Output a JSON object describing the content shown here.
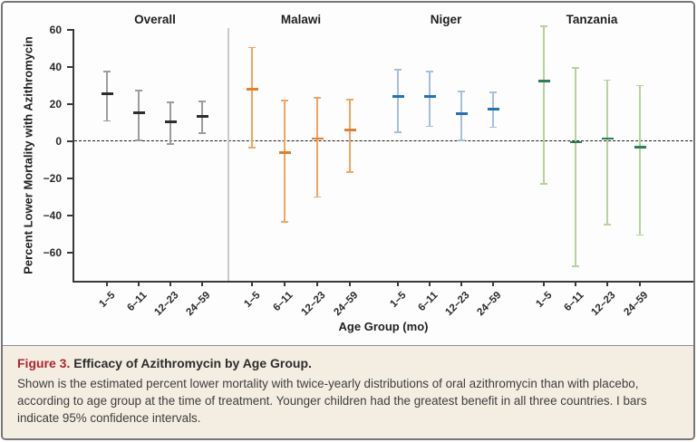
{
  "caption": {
    "label": "Figure 3.",
    "title": "Efficacy of Azithromycin by Age Group.",
    "body": "Shown is the estimated percent lower mortality with twice-yearly distributions of oral azithromycin than with placebo, according to age group at the time of treatment. Younger children had the greatest benefit in all three countries. I bars indicate 95% confidence intervals."
  },
  "chart_data": {
    "type": "scatter",
    "title": "",
    "ylabel": "Percent Lower Mortality with Azithromycin",
    "xlabel": "Age Group (mo)",
    "ylim": [
      -75,
      65
    ],
    "y_tick_values": [
      60,
      40,
      20,
      0,
      -20,
      -40,
      -60
    ],
    "zero_reference_line": true,
    "grid": false,
    "legend": "none",
    "units": "percent lower mortality (point estimate with 95% CI)",
    "categories": [
      "1–5",
      "6–11",
      "12–23",
      "24–59"
    ],
    "panels": [
      {
        "name": "Overall",
        "marker_color": "#2d2d2d",
        "bar_color": "#9c9c9c",
        "points": [
          {
            "age": "1–5",
            "est": 25.5,
            "lo": 11,
            "hi": 37.5
          },
          {
            "age": "6–11",
            "est": 15.5,
            "lo": 0.5,
            "hi": 27.5
          },
          {
            "age": "12–23",
            "est": 10.5,
            "lo": -1.5,
            "hi": 21
          },
          {
            "age": "24–59",
            "est": 13.5,
            "lo": 4.5,
            "hi": 21.5
          }
        ]
      },
      {
        "name": "Malawi",
        "marker_color": "#e0802f",
        "bar_color": "#f0a660",
        "points": [
          {
            "age": "1–5",
            "est": 28,
            "lo": -3.5,
            "hi": 50.5
          },
          {
            "age": "6–11",
            "est": -6,
            "lo": -43.5,
            "hi": 22
          },
          {
            "age": "12–23",
            "est": 1.5,
            "lo": -30,
            "hi": 23.5
          },
          {
            "age": "24–59",
            "est": 6,
            "lo": -16.5,
            "hi": 22.5
          }
        ]
      },
      {
        "name": "Niger",
        "marker_color": "#2173b8",
        "bar_color": "#a3c0de",
        "points": [
          {
            "age": "1–5",
            "est": 24,
            "lo": 5,
            "hi": 38.5
          },
          {
            "age": "6–11",
            "est": 24,
            "lo": 8,
            "hi": 37.5
          },
          {
            "age": "12–23",
            "est": 15,
            "lo": 0.5,
            "hi": 27
          },
          {
            "age": "24–59",
            "est": 17.5,
            "lo": 7.5,
            "hi": 26.5
          }
        ]
      },
      {
        "name": "Tanzania",
        "marker_color": "#2a7d5f",
        "bar_color": "#b8d29a",
        "points": [
          {
            "age": "1–5",
            "est": 32.5,
            "lo": -23,
            "hi": 62
          },
          {
            "age": "6–11",
            "est": -0.5,
            "lo": -67.5,
            "hi": 39.5
          },
          {
            "age": "12–23",
            "est": 1.5,
            "lo": -45,
            "hi": 33
          },
          {
            "age": "24–59",
            "est": -3,
            "lo": -50.5,
            "hi": 30
          }
        ]
      }
    ]
  }
}
